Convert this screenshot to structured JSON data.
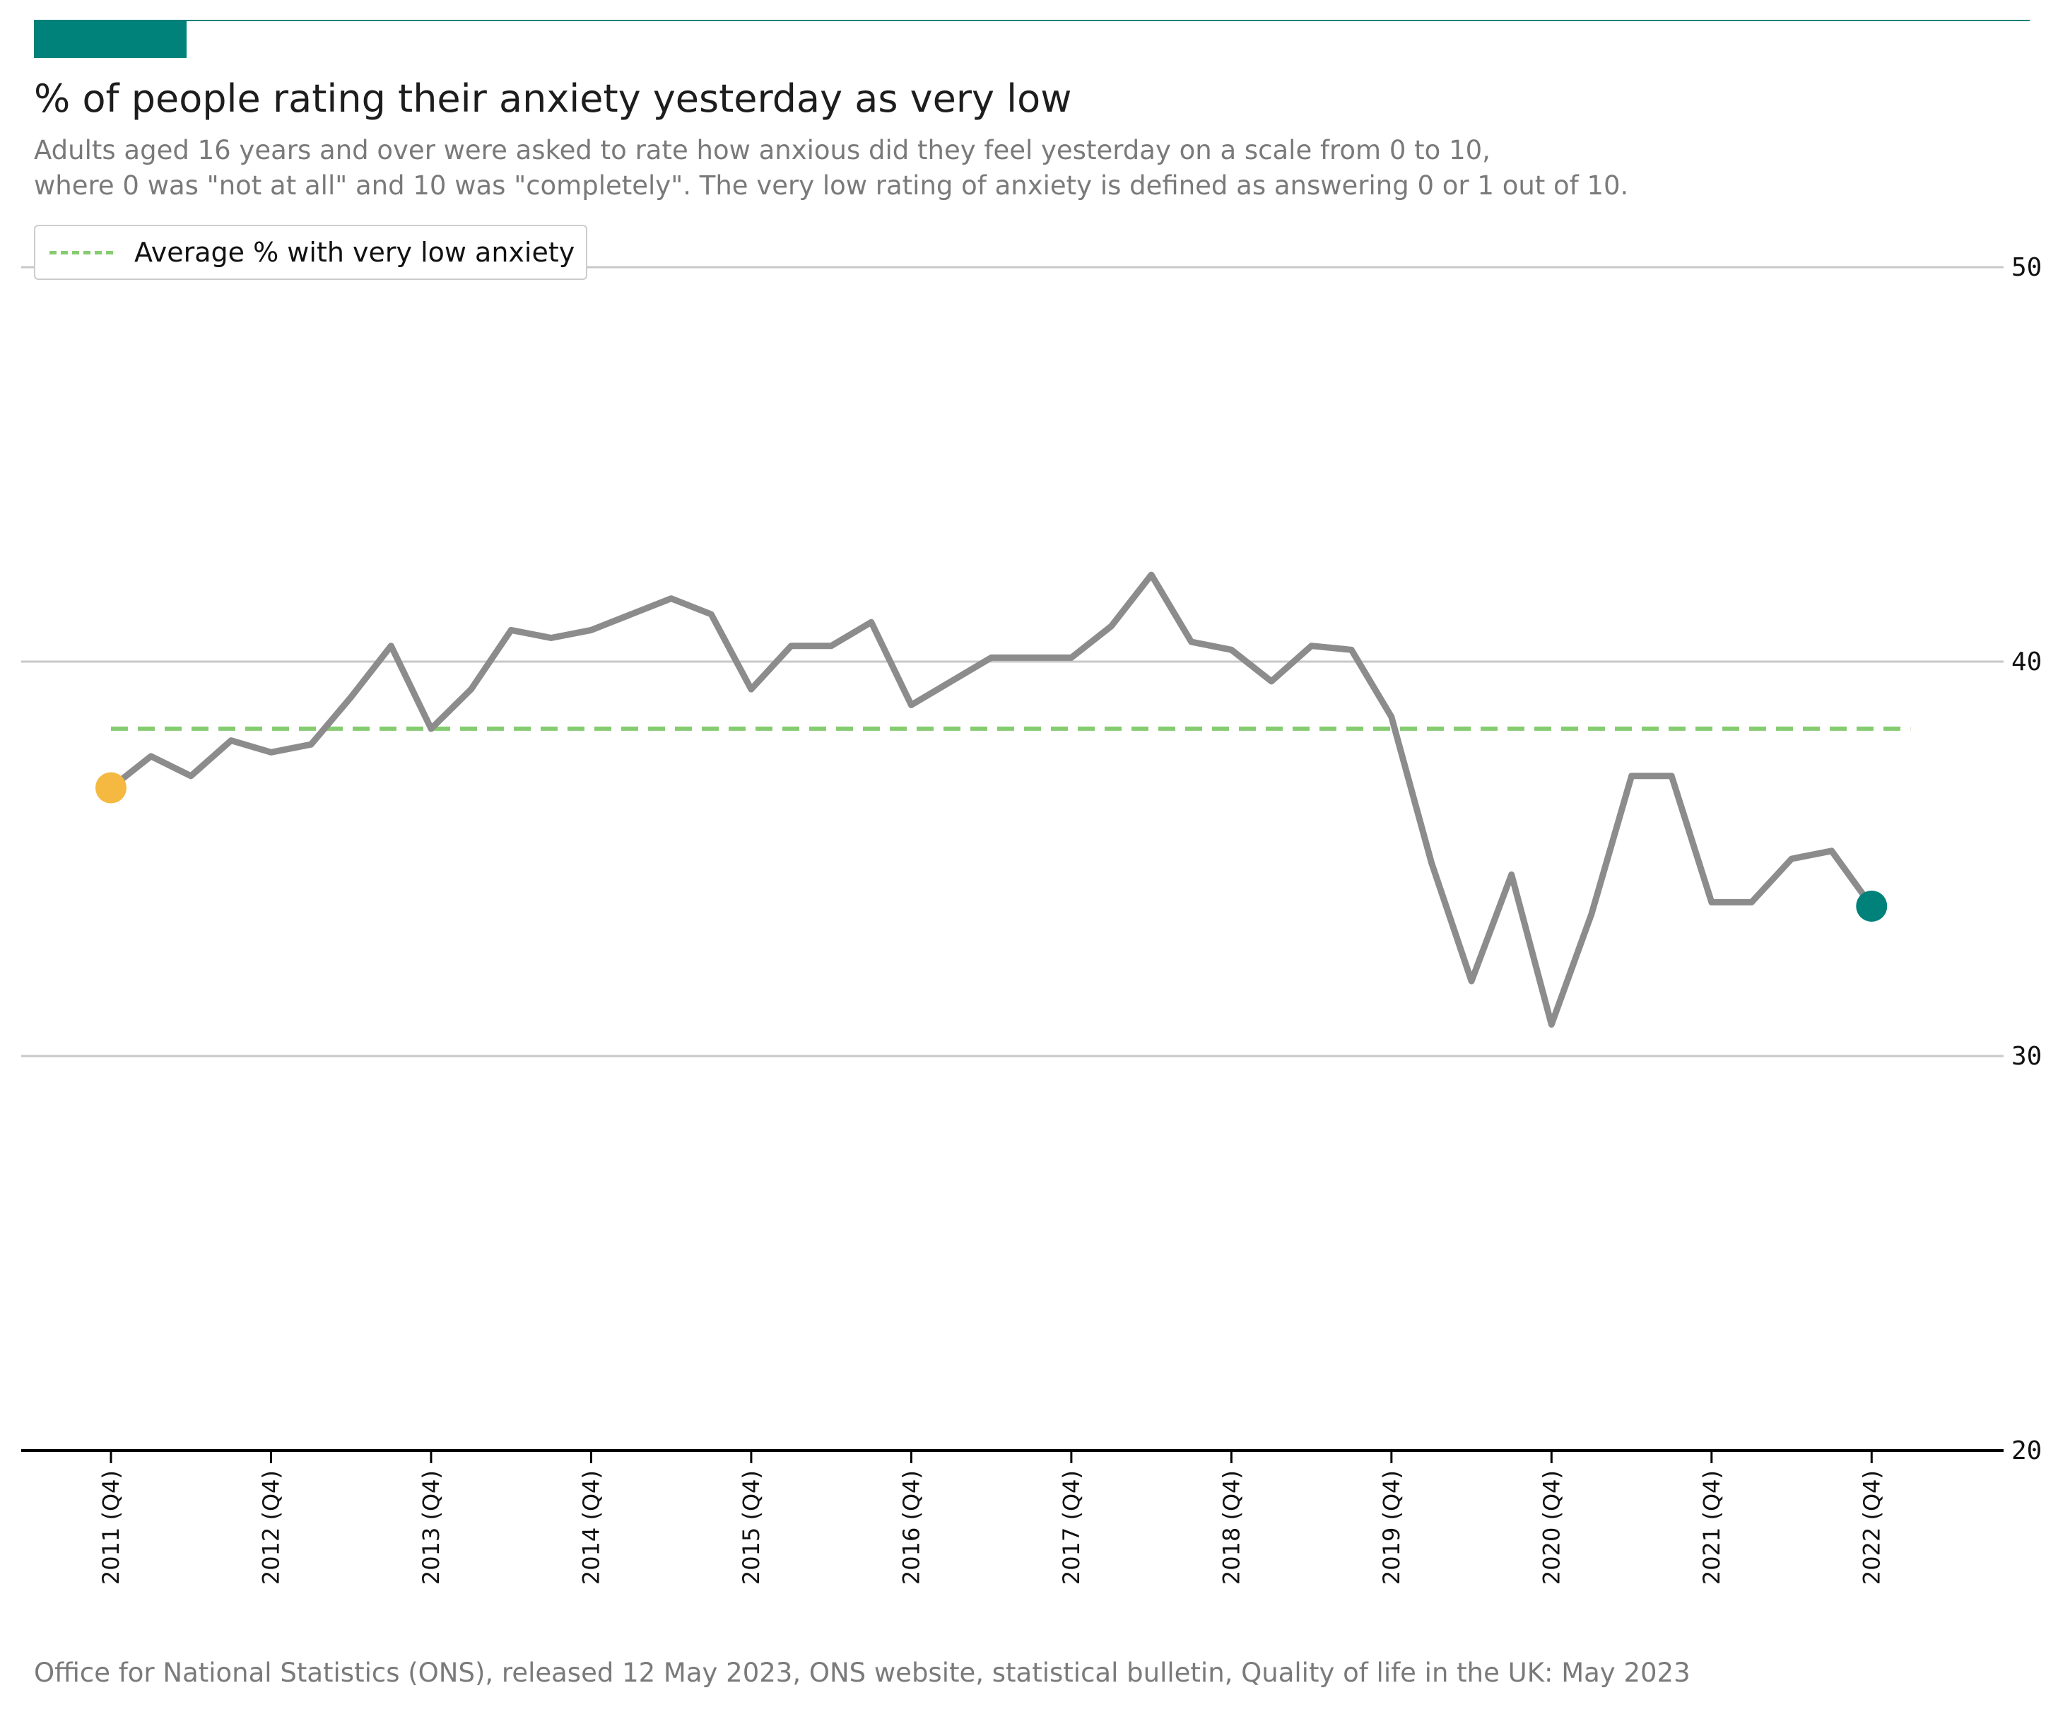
{
  "header": {
    "title": "% of people rating their anxiety yesterday as very low",
    "subtitle_line1": "Adults aged 16 years and over were asked to rate how anxious did they feel yesterday on a scale from 0 to 10,",
    "subtitle_line2": "where 0 was \"not at all\" and 10 was \"completely\". The very low rating of anxiety is defined as answering 0 or 1 out of 10."
  },
  "legend": {
    "label": "Average % with very low anxiety"
  },
  "source": "Office for National Statistics (ONS), released 12 May 2023, ONS website, statistical bulletin, Quality of life in the UK: May 2023",
  "colors": {
    "accent": "#00817a",
    "series_line": "#8c8c8c",
    "average_line": "#85cc70",
    "start_marker": "#f5b942",
    "end_marker": "#00817a",
    "gridline": "#c8c8c8",
    "axis": "#000000"
  },
  "chart_data": {
    "type": "line",
    "title": "% of people rating their anxiety yesterday as very low",
    "ylim": [
      20,
      50
    ],
    "yticks": [
      "50",
      "40",
      "30",
      "20"
    ],
    "ytick_values": [
      50,
      40,
      30,
      20
    ],
    "y_axis_position": "right",
    "grid": true,
    "legend_position": "top-left",
    "x_labels": [
      "2011 (Q4)",
      "2012 (Q4)",
      "2013 (Q4)",
      "2014 (Q4)",
      "2015 (Q4)",
      "2016 (Q4)",
      "2017 (Q4)",
      "2018 (Q4)",
      "2019 (Q4)",
      "2020 (Q4)",
      "2021 (Q4)",
      "2022 (Q4)"
    ],
    "series": [
      {
        "values": [
          36.8,
          37.6,
          37.1,
          38.0,
          37.7,
          37.9,
          39.1,
          40.4,
          38.3,
          39.3,
          40.8,
          40.6,
          40.8,
          41.2,
          41.6,
          41.2,
          39.3,
          40.4,
          40.4,
          41.0,
          38.9,
          39.5,
          40.1,
          40.1,
          40.1,
          40.9,
          42.2,
          40.5,
          40.3,
          39.5,
          40.4,
          40.3,
          38.6,
          34.9,
          31.9,
          34.6,
          30.8,
          33.6,
          37.1,
          37.1,
          33.9,
          33.9,
          35.0,
          35.2,
          33.8
        ]
      },
      {
        "name": "Average % with very low anxiety",
        "values": [
          38.3
        ]
      }
    ]
  }
}
